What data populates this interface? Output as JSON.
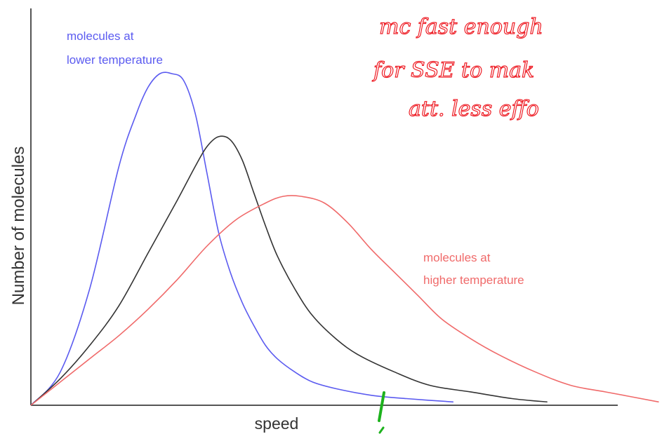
{
  "chart_data": {
    "type": "line",
    "xlabel": "speed",
    "ylabel": "Number of molecules",
    "xlim": [
      0,
      100
    ],
    "ylim": [
      0,
      100
    ],
    "grid": false,
    "series": [
      {
        "label": [
          "molecules at",
          "lower temperature"
        ],
        "color": "#5b5bf0",
        "x": [
          0,
          5,
          10,
          15,
          18,
          20,
          22,
          24,
          26,
          28,
          30,
          32,
          34,
          36,
          38,
          40,
          42,
          45,
          48,
          52,
          58,
          64,
          72
        ],
        "y": [
          0,
          10,
          35,
          72,
          88,
          96,
          100,
          100,
          98,
          88,
          70,
          52,
          40,
          31,
          24,
          18,
          14,
          10,
          7,
          5,
          3,
          2,
          1
        ]
      },
      {
        "label": [],
        "color": "#333333",
        "x": [
          0,
          5,
          10,
          15,
          20,
          25,
          28,
          30,
          32,
          34,
          36,
          38,
          40,
          42,
          45,
          48,
          52,
          56,
          62,
          68,
          75,
          82,
          88
        ],
        "y": [
          0,
          8,
          18,
          30,
          46,
          62,
          72,
          78,
          81,
          80,
          74,
          64,
          54,
          45,
          35,
          27,
          20,
          15,
          10,
          6,
          4,
          2,
          1
        ]
      },
      {
        "label": [
          "molecules at",
          "higher temperature"
        ],
        "color": "#f06a6a",
        "x": [
          0,
          5,
          10,
          15,
          20,
          25,
          30,
          35,
          40,
          43,
          46,
          50,
          54,
          58,
          62,
          66,
          70,
          75,
          80,
          86,
          92,
          98,
          107
        ],
        "y": [
          0,
          7,
          14,
          21,
          29,
          38,
          48,
          56,
          61,
          63,
          63,
          61,
          55,
          47,
          40,
          33,
          26,
          20,
          15,
          10,
          6,
          4,
          1
        ]
      }
    ]
  },
  "annotations": {
    "handwritten_lines": [
      "mc   fast enough",
      "for  SSE  to  mak",
      "att.   less  effo"
    ],
    "handwritten_color": "#ee1c24",
    "marker_color": "#1db21d"
  }
}
